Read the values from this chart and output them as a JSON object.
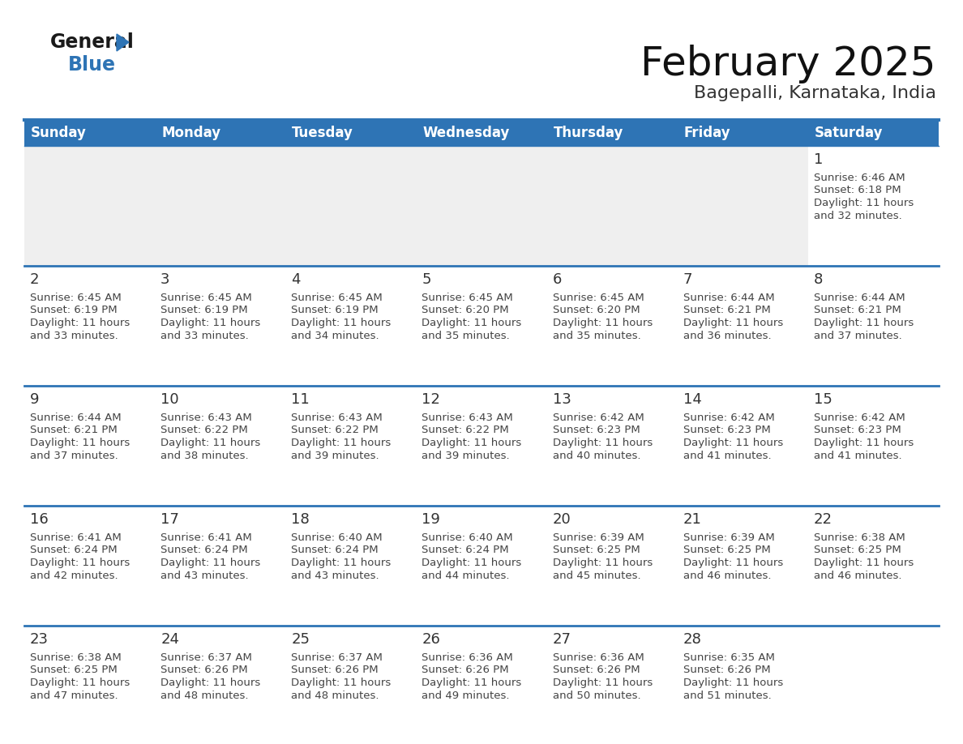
{
  "title": "February 2025",
  "subtitle": "Bagepalli, Karnataka, India",
  "days_of_week": [
    "Sunday",
    "Monday",
    "Tuesday",
    "Wednesday",
    "Thursday",
    "Friday",
    "Saturday"
  ],
  "header_bg": "#2E74B5",
  "header_text": "#FFFFFF",
  "cell_bg_white": "#FFFFFF",
  "cell_bg_gray": "#EFEFEF",
  "divider_color": "#2E74B5",
  "day_number_color": "#333333",
  "text_color": "#444444",
  "logo_general_color": "#1A1A1A",
  "logo_blue_color": "#2E74B5",
  "calendar_data": [
    [
      {
        "day": null,
        "sunrise": null,
        "sunset": null,
        "daylight": null
      },
      {
        "day": null,
        "sunrise": null,
        "sunset": null,
        "daylight": null
      },
      {
        "day": null,
        "sunrise": null,
        "sunset": null,
        "daylight": null
      },
      {
        "day": null,
        "sunrise": null,
        "sunset": null,
        "daylight": null
      },
      {
        "day": null,
        "sunrise": null,
        "sunset": null,
        "daylight": null
      },
      {
        "day": null,
        "sunrise": null,
        "sunset": null,
        "daylight": null
      },
      {
        "day": 1,
        "sunrise": "6:46 AM",
        "sunset": "6:18 PM",
        "daylight": "11 hours\nand 32 minutes."
      }
    ],
    [
      {
        "day": 2,
        "sunrise": "6:45 AM",
        "sunset": "6:19 PM",
        "daylight": "11 hours\nand 33 minutes."
      },
      {
        "day": 3,
        "sunrise": "6:45 AM",
        "sunset": "6:19 PM",
        "daylight": "11 hours\nand 33 minutes."
      },
      {
        "day": 4,
        "sunrise": "6:45 AM",
        "sunset": "6:19 PM",
        "daylight": "11 hours\nand 34 minutes."
      },
      {
        "day": 5,
        "sunrise": "6:45 AM",
        "sunset": "6:20 PM",
        "daylight": "11 hours\nand 35 minutes."
      },
      {
        "day": 6,
        "sunrise": "6:45 AM",
        "sunset": "6:20 PM",
        "daylight": "11 hours\nand 35 minutes."
      },
      {
        "day": 7,
        "sunrise": "6:44 AM",
        "sunset": "6:21 PM",
        "daylight": "11 hours\nand 36 minutes."
      },
      {
        "day": 8,
        "sunrise": "6:44 AM",
        "sunset": "6:21 PM",
        "daylight": "11 hours\nand 37 minutes."
      }
    ],
    [
      {
        "day": 9,
        "sunrise": "6:44 AM",
        "sunset": "6:21 PM",
        "daylight": "11 hours\nand 37 minutes."
      },
      {
        "day": 10,
        "sunrise": "6:43 AM",
        "sunset": "6:22 PM",
        "daylight": "11 hours\nand 38 minutes."
      },
      {
        "day": 11,
        "sunrise": "6:43 AM",
        "sunset": "6:22 PM",
        "daylight": "11 hours\nand 39 minutes."
      },
      {
        "day": 12,
        "sunrise": "6:43 AM",
        "sunset": "6:22 PM",
        "daylight": "11 hours\nand 39 minutes."
      },
      {
        "day": 13,
        "sunrise": "6:42 AM",
        "sunset": "6:23 PM",
        "daylight": "11 hours\nand 40 minutes."
      },
      {
        "day": 14,
        "sunrise": "6:42 AM",
        "sunset": "6:23 PM",
        "daylight": "11 hours\nand 41 minutes."
      },
      {
        "day": 15,
        "sunrise": "6:42 AM",
        "sunset": "6:23 PM",
        "daylight": "11 hours\nand 41 minutes."
      }
    ],
    [
      {
        "day": 16,
        "sunrise": "6:41 AM",
        "sunset": "6:24 PM",
        "daylight": "11 hours\nand 42 minutes."
      },
      {
        "day": 17,
        "sunrise": "6:41 AM",
        "sunset": "6:24 PM",
        "daylight": "11 hours\nand 43 minutes."
      },
      {
        "day": 18,
        "sunrise": "6:40 AM",
        "sunset": "6:24 PM",
        "daylight": "11 hours\nand 43 minutes."
      },
      {
        "day": 19,
        "sunrise": "6:40 AM",
        "sunset": "6:24 PM",
        "daylight": "11 hours\nand 44 minutes."
      },
      {
        "day": 20,
        "sunrise": "6:39 AM",
        "sunset": "6:25 PM",
        "daylight": "11 hours\nand 45 minutes."
      },
      {
        "day": 21,
        "sunrise": "6:39 AM",
        "sunset": "6:25 PM",
        "daylight": "11 hours\nand 46 minutes."
      },
      {
        "day": 22,
        "sunrise": "6:38 AM",
        "sunset": "6:25 PM",
        "daylight": "11 hours\nand 46 minutes."
      }
    ],
    [
      {
        "day": 23,
        "sunrise": "6:38 AM",
        "sunset": "6:25 PM",
        "daylight": "11 hours\nand 47 minutes."
      },
      {
        "day": 24,
        "sunrise": "6:37 AM",
        "sunset": "6:26 PM",
        "daylight": "11 hours\nand 48 minutes."
      },
      {
        "day": 25,
        "sunrise": "6:37 AM",
        "sunset": "6:26 PM",
        "daylight": "11 hours\nand 48 minutes."
      },
      {
        "day": 26,
        "sunrise": "6:36 AM",
        "sunset": "6:26 PM",
        "daylight": "11 hours\nand 49 minutes."
      },
      {
        "day": 27,
        "sunrise": "6:36 AM",
        "sunset": "6:26 PM",
        "daylight": "11 hours\nand 50 minutes."
      },
      {
        "day": 28,
        "sunrise": "6:35 AM",
        "sunset": "6:26 PM",
        "daylight": "11 hours\nand 51 minutes."
      },
      {
        "day": null,
        "sunrise": null,
        "sunset": null,
        "daylight": null
      }
    ]
  ]
}
